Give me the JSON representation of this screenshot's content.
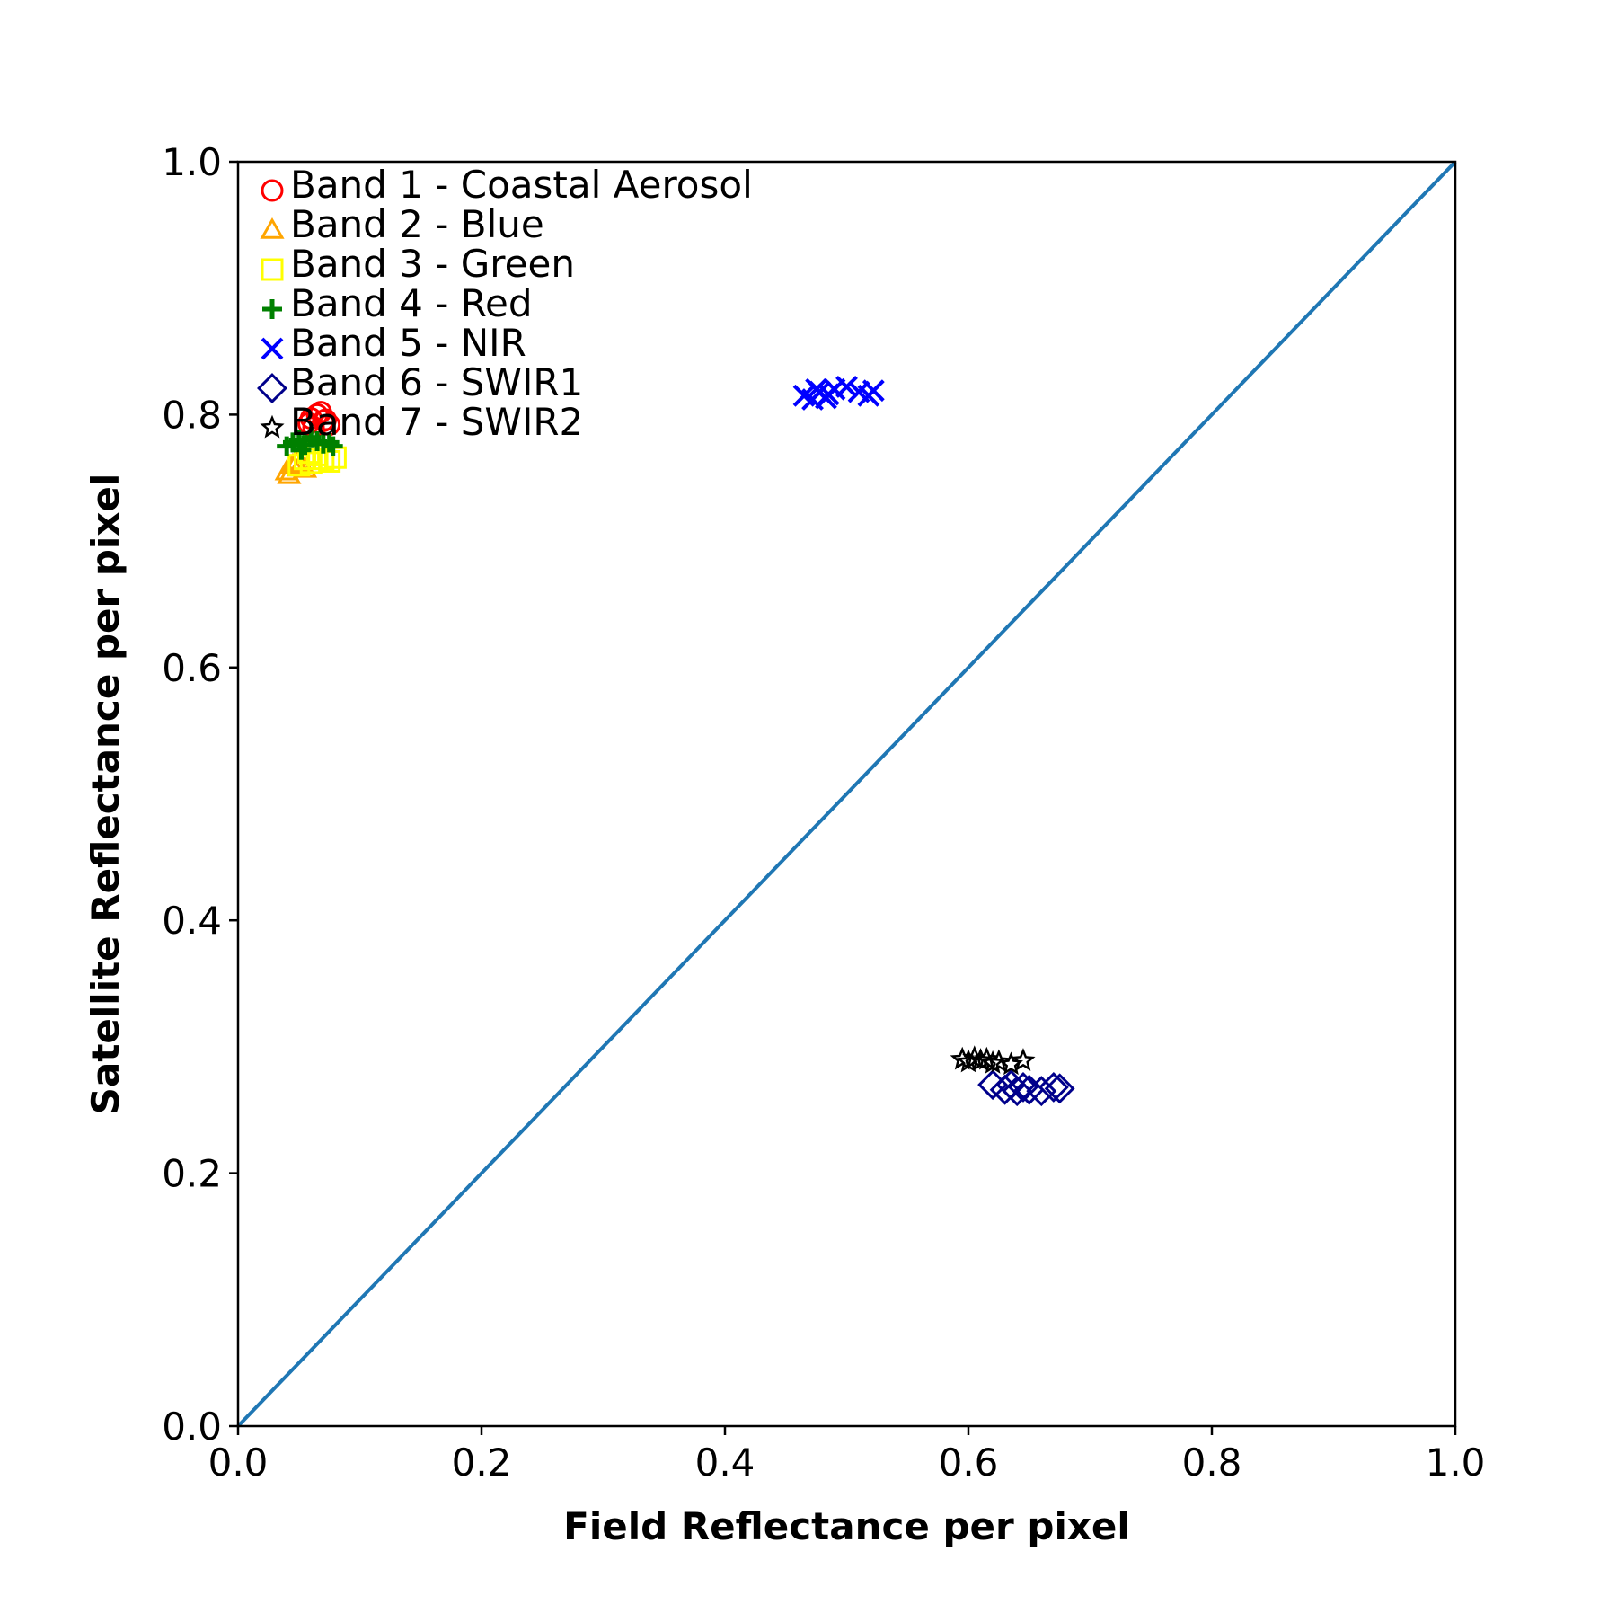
{
  "chart_data": {
    "type": "scatter",
    "title": "",
    "xlabel": "Field Reflectance per pixel",
    "ylabel": "Satellite Reflectance per pixel",
    "xlim": [
      0.0,
      1.0
    ],
    "ylim": [
      0.0,
      1.0
    ],
    "xticks": [
      "0.0",
      "0.2",
      "0.4",
      "0.6",
      "0.8",
      "1.0"
    ],
    "yticks": [
      "0.0",
      "0.2",
      "0.4",
      "0.6",
      "0.8",
      "1.0"
    ],
    "grid": false,
    "legend_position": "top-left",
    "reference_line": {
      "x": [
        0.0,
        1.0
      ],
      "y": [
        0.0,
        1.0
      ],
      "color": "#1f77b4"
    },
    "series": [
      {
        "name": "Band 1 - Coastal Aerosol",
        "marker": "circle",
        "color": "#ff0000",
        "points": [
          [
            0.06,
            0.797
          ],
          [
            0.065,
            0.8
          ],
          [
            0.07,
            0.795
          ],
          [
            0.062,
            0.79
          ],
          [
            0.068,
            0.802
          ],
          [
            0.072,
            0.796
          ],
          [
            0.058,
            0.793
          ],
          [
            0.075,
            0.792
          ]
        ]
      },
      {
        "name": "Band 2 - Blue",
        "marker": "triangle",
        "color": "#ffa500",
        "points": [
          [
            0.04,
            0.755
          ],
          [
            0.045,
            0.76
          ],
          [
            0.05,
            0.758
          ],
          [
            0.042,
            0.752
          ],
          [
            0.048,
            0.762
          ],
          [
            0.055,
            0.757
          ],
          [
            0.052,
            0.76
          ]
        ]
      },
      {
        "name": "Band 3 - Green",
        "marker": "square",
        "color": "#ffff00",
        "points": [
          [
            0.05,
            0.76
          ],
          [
            0.055,
            0.765
          ],
          [
            0.06,
            0.762
          ],
          [
            0.065,
            0.768
          ],
          [
            0.07,
            0.765
          ],
          [
            0.08,
            0.766
          ],
          [
            0.058,
            0.77
          ],
          [
            0.075,
            0.763
          ]
        ]
      },
      {
        "name": "Band 4 - Red",
        "marker": "plus",
        "color": "#008000",
        "points": [
          [
            0.04,
            0.775
          ],
          [
            0.045,
            0.778
          ],
          [
            0.05,
            0.78
          ],
          [
            0.055,
            0.776
          ],
          [
            0.06,
            0.782
          ],
          [
            0.065,
            0.779
          ],
          [
            0.07,
            0.777
          ],
          [
            0.075,
            0.778
          ],
          [
            0.078,
            0.775
          ],
          [
            0.052,
            0.772
          ]
        ]
      },
      {
        "name": "Band 5 - NIR",
        "marker": "x",
        "color": "#0000ff",
        "points": [
          [
            0.465,
            0.815
          ],
          [
            0.472,
            0.812
          ],
          [
            0.478,
            0.818
          ],
          [
            0.483,
            0.813
          ],
          [
            0.49,
            0.82
          ],
          [
            0.5,
            0.822
          ],
          [
            0.485,
            0.816
          ],
          [
            0.51,
            0.818
          ],
          [
            0.518,
            0.815
          ],
          [
            0.522,
            0.819
          ],
          [
            0.475,
            0.82
          ]
        ]
      },
      {
        "name": "Band 6 - SWIR1",
        "marker": "diamond",
        "color": "#00008b",
        "points": [
          [
            0.62,
            0.27
          ],
          [
            0.63,
            0.266
          ],
          [
            0.635,
            0.27
          ],
          [
            0.64,
            0.265
          ],
          [
            0.645,
            0.268
          ],
          [
            0.65,
            0.266
          ],
          [
            0.66,
            0.265
          ],
          [
            0.67,
            0.268
          ],
          [
            0.675,
            0.267
          ]
        ]
      },
      {
        "name": "Band 7 - SWIR2",
        "marker": "star",
        "color": "#000000",
        "points": [
          [
            0.595,
            0.29
          ],
          [
            0.6,
            0.288
          ],
          [
            0.605,
            0.291
          ],
          [
            0.61,
            0.289
          ],
          [
            0.615,
            0.29
          ],
          [
            0.62,
            0.287
          ],
          [
            0.625,
            0.288
          ],
          [
            0.635,
            0.286
          ],
          [
            0.645,
            0.289
          ]
        ]
      }
    ]
  }
}
